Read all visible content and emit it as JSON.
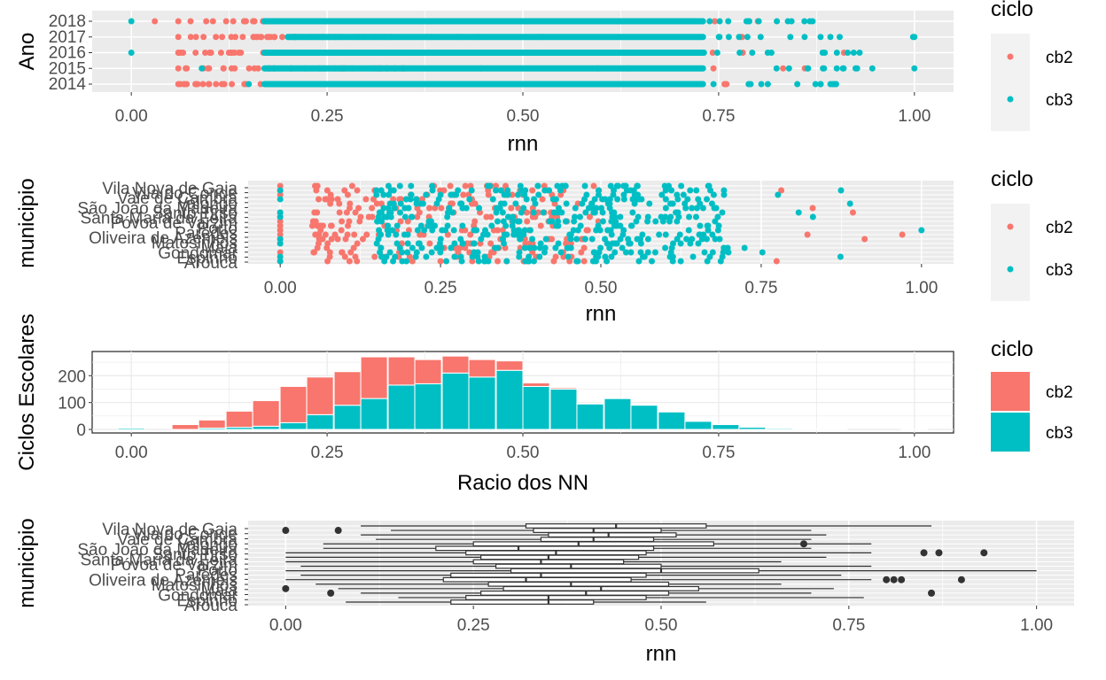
{
  "colors": {
    "cb2": "#F8766D",
    "cb3": "#00BFC4",
    "panel": "#EBEBEB",
    "grid": "#FFFFFF",
    "box": "#333333",
    "tick_text": "#4D4D4D"
  },
  "chart_data": [
    {
      "type": "scatter",
      "panel": "ano",
      "xlabel": "rnn",
      "ylabel": "Ano",
      "xlim": [
        -0.05,
        1.05
      ],
      "x_ticks": [
        "0.00",
        "0.25",
        "0.50",
        "0.75",
        "1.00"
      ],
      "y_categories": [
        "2014",
        "2015",
        "2016",
        "2017",
        "2018"
      ],
      "legend": {
        "title": "ciclo",
        "position": "right",
        "entries": [
          "cb2",
          "cb3"
        ]
      },
      "series": [
        {
          "name": "cb2",
          "ranges": [
            {
              "y": "2018",
              "min": 0.03,
              "max": 0.8
            },
            {
              "y": "2017",
              "min": 0.06,
              "max": 0.78
            },
            {
              "y": "2016",
              "min": 0.06,
              "max": 0.91
            },
            {
              "y": "2015",
              "min": 0.06,
              "max": 0.86
            },
            {
              "y": "2014",
              "min": 0.06,
              "max": 0.76
            }
          ]
        },
        {
          "name": "cb3",
          "ranges": [
            {
              "y": "2018",
              "min": 0.0,
              "max": 0.87
            },
            {
              "y": "2017",
              "min": 0.2,
              "max": 1.0
            },
            {
              "y": "2016",
              "min": 0.0,
              "max": 0.93
            },
            {
              "y": "2015",
              "min": 0.09,
              "max": 1.0
            },
            {
              "y": "2014",
              "min": 0.15,
              "max": 0.9
            }
          ]
        }
      ]
    },
    {
      "type": "scatter",
      "panel": "municipio-points",
      "xlabel": "rnn",
      "ylabel": "municipio",
      "xlim": [
        -0.05,
        1.05
      ],
      "x_ticks": [
        "0.00",
        "0.25",
        "0.50",
        "0.75",
        "1.00"
      ],
      "y_labels_visible": [
        "Vila Nova de Gaia",
        "Vila do Conde",
        "Vale de Cambra",
        "Valongo",
        "São João da Madeira",
        "Santo Tirso",
        "Santa Maria da Feira",
        "Póvoa de Varzim",
        "Porto",
        "Paredes",
        "Oliveira de Azeméis",
        "Matosinhos",
        "Maia",
        "Gondomar",
        "Espinho",
        "Arouca"
      ],
      "legend": {
        "title": "ciclo",
        "position": "right",
        "entries": [
          "cb2",
          "cb3"
        ]
      },
      "series": [
        {
          "name": "cb2",
          "min": 0.0,
          "max": 0.97
        },
        {
          "name": "cb3",
          "min": 0.0,
          "max": 1.0
        }
      ]
    },
    {
      "type": "bar",
      "stacked": true,
      "panel": "ciclos-histogram",
      "xlabel": "Racio dos NN",
      "ylabel": "Ciclos Escolares",
      "xlim": [
        -0.05,
        1.05
      ],
      "ylim": [
        0,
        290
      ],
      "x_ticks": [
        "0.00",
        "0.25",
        "0.50",
        "0.75",
        "1.00"
      ],
      "y_ticks": [
        "0",
        "100",
        "200"
      ],
      "bin_centers": [
        0.0,
        0.034,
        0.069,
        0.103,
        0.138,
        0.172,
        0.207,
        0.241,
        0.276,
        0.31,
        0.345,
        0.379,
        0.414,
        0.448,
        0.483,
        0.517,
        0.552,
        0.586,
        0.621,
        0.655,
        0.69,
        0.724,
        0.759,
        0.793,
        0.828,
        0.862,
        0.897,
        0.931,
        0.966,
        1.0
      ],
      "legend": {
        "title": "ciclo",
        "position": "right",
        "entries": [
          "cb2",
          "cb3"
        ]
      },
      "series": [
        {
          "name": "cb3",
          "values": [
            5,
            0,
            0,
            5,
            8,
            12,
            25,
            55,
            90,
            115,
            165,
            170,
            210,
            195,
            220,
            160,
            150,
            95,
            115,
            90,
            65,
            30,
            18,
            8,
            4,
            2,
            1,
            0,
            0,
            1
          ]
        },
        {
          "name": "cb2",
          "values": [
            0,
            0,
            18,
            30,
            60,
            95,
            135,
            140,
            125,
            155,
            105,
            90,
            63,
            65,
            35,
            13,
            5,
            3,
            2,
            0,
            0,
            0,
            0,
            0,
            0,
            0,
            0,
            0,
            0,
            0
          ]
        }
      ]
    },
    {
      "type": "boxplot",
      "panel": "municipio-boxplot",
      "xlabel": "rnn",
      "ylabel": "municipio",
      "xlim": [
        -0.05,
        1.05
      ],
      "x_ticks": [
        "0.00",
        "0.25",
        "0.50",
        "0.75",
        "1.00"
      ],
      "y_labels_visible": [
        "Vila Nova de Gaia",
        "Vila do Conde",
        "Vale de Cambra",
        "Valongo",
        "São João da Madeira",
        "Santo Tirso",
        "Santa Maria da Feira",
        "Póvoa de Varzim",
        "Porto",
        "Paredes",
        "Oliveira de Azeméis",
        "Matosinhos",
        "Maia",
        "Gondomar",
        "Espinho",
        "Arouca"
      ],
      "boxes": [
        {
          "lo": 0.1,
          "q1": 0.32,
          "med": 0.44,
          "q3": 0.56,
          "hi": 0.86
        },
        {
          "lo": 0.14,
          "q1": 0.33,
          "med": 0.41,
          "q3": 0.5,
          "hi": 0.7,
          "outliers": [
            0.0,
            0.07
          ]
        },
        {
          "lo": 0.1,
          "q1": 0.35,
          "med": 0.43,
          "q3": 0.52,
          "hi": 0.72
        },
        {
          "lo": 0.12,
          "q1": 0.34,
          "med": 0.41,
          "q3": 0.49,
          "hi": 0.7
        },
        {
          "lo": 0.05,
          "q1": 0.25,
          "med": 0.39,
          "q3": 0.57,
          "hi": 0.78,
          "outliers": [
            0.69
          ]
        },
        {
          "lo": 0.05,
          "q1": 0.2,
          "med": 0.31,
          "q3": 0.49,
          "hi": 0.7
        },
        {
          "lo": 0.0,
          "q1": 0.24,
          "med": 0.36,
          "q3": 0.48,
          "hi": 0.78,
          "outliers": [
            0.85,
            0.87,
            0.93
          ]
        },
        {
          "lo": 0.0,
          "q1": 0.26,
          "med": 0.35,
          "q3": 0.47,
          "hi": 0.72
        },
        {
          "lo": 0.0,
          "q1": 0.25,
          "med": 0.34,
          "q3": 0.45,
          "hi": 0.66
        },
        {
          "lo": 0.02,
          "q1": 0.28,
          "med": 0.38,
          "q3": 0.5,
          "hi": 0.78
        },
        {
          "lo": 0.0,
          "q1": 0.3,
          "med": 0.5,
          "q3": 0.63,
          "hi": 1.0
        },
        {
          "lo": 0.02,
          "q1": 0.22,
          "med": 0.34,
          "q3": 0.48,
          "hi": 0.74
        },
        {
          "lo": 0.0,
          "q1": 0.21,
          "med": 0.32,
          "q3": 0.46,
          "hi": 0.78,
          "outliers": [
            0.8,
            0.81,
            0.82,
            0.9
          ]
        },
        {
          "lo": 0.04,
          "q1": 0.27,
          "med": 0.38,
          "q3": 0.51,
          "hi": 0.66
        },
        {
          "lo": 0.07,
          "q1": 0.29,
          "med": 0.42,
          "q3": 0.55,
          "hi": 0.73,
          "outliers": [
            0.0
          ]
        },
        {
          "lo": 0.1,
          "q1": 0.26,
          "med": 0.4,
          "q3": 0.51,
          "hi": 0.7,
          "outliers": [
            0.06,
            0.86
          ]
        },
        {
          "lo": 0.15,
          "q1": 0.24,
          "med": 0.35,
          "q3": 0.48,
          "hi": 0.77
        },
        {
          "lo": 0.08,
          "q1": 0.22,
          "med": 0.35,
          "q3": 0.41,
          "hi": 0.56
        }
      ]
    }
  ]
}
